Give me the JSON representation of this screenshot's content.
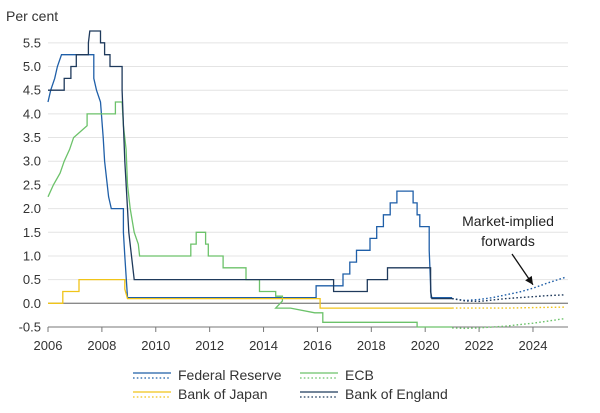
{
  "chart_data": {
    "type": "line",
    "title": "",
    "ylabel": "Per cent",
    "xlabel": "",
    "xlim": [
      2006,
      2025.3
    ],
    "ylim": [
      -0.5,
      5.75
    ],
    "x_ticks": [
      2006,
      2008,
      2010,
      2012,
      2014,
      2016,
      2018,
      2020,
      2022,
      2024
    ],
    "y_ticks": [
      -0.5,
      0.0,
      0.5,
      1.0,
      1.5,
      2.0,
      2.5,
      3.0,
      3.5,
      4.0,
      4.5,
      5.0,
      5.5
    ],
    "y_tick_labels": [
      "-0.5",
      "0.0",
      "0.5",
      "1.0",
      "1.5",
      "2.0",
      "2.5",
      "3.0",
      "3.5",
      "4.0",
      "4.5",
      "5.0",
      "5.5"
    ],
    "zero_line": true,
    "annotation": {
      "lines": [
        "Market-implied",
        "forwards"
      ],
      "points_to": [
        2024.0,
        0.35
      ]
    },
    "series": [
      {
        "name": "Federal Reserve",
        "color": "#1f5fa8",
        "actual": [
          [
            2006.0,
            4.25
          ],
          [
            2006.1,
            4.5
          ],
          [
            2006.25,
            4.75
          ],
          [
            2006.35,
            5.0
          ],
          [
            2006.5,
            5.25
          ],
          [
            2007.7,
            5.25
          ],
          [
            2007.7,
            4.75
          ],
          [
            2007.8,
            4.5
          ],
          [
            2007.95,
            4.25
          ],
          [
            2008.05,
            3.5
          ],
          [
            2008.1,
            3.0
          ],
          [
            2008.25,
            2.25
          ],
          [
            2008.35,
            2.0
          ],
          [
            2008.8,
            2.0
          ],
          [
            2008.8,
            1.5
          ],
          [
            2008.85,
            1.0
          ],
          [
            2008.95,
            0.12
          ],
          [
            2015.95,
            0.12
          ],
          [
            2015.95,
            0.37
          ],
          [
            2016.95,
            0.37
          ],
          [
            2016.95,
            0.62
          ],
          [
            2017.2,
            0.62
          ],
          [
            2017.2,
            0.87
          ],
          [
            2017.45,
            0.87
          ],
          [
            2017.45,
            1.12
          ],
          [
            2017.95,
            1.12
          ],
          [
            2017.95,
            1.37
          ],
          [
            2018.2,
            1.37
          ],
          [
            2018.2,
            1.62
          ],
          [
            2018.45,
            1.62
          ],
          [
            2018.45,
            1.87
          ],
          [
            2018.7,
            1.87
          ],
          [
            2018.7,
            2.12
          ],
          [
            2018.95,
            2.12
          ],
          [
            2018.95,
            2.37
          ],
          [
            2019.55,
            2.37
          ],
          [
            2019.55,
            2.12
          ],
          [
            2019.7,
            2.12
          ],
          [
            2019.7,
            1.87
          ],
          [
            2019.8,
            1.87
          ],
          [
            2019.8,
            1.62
          ],
          [
            2020.15,
            1.62
          ],
          [
            2020.15,
            1.12
          ],
          [
            2020.22,
            0.12
          ],
          [
            2021.0,
            0.12
          ]
        ],
        "forward": [
          [
            2021.0,
            0.1
          ],
          [
            2021.5,
            0.06
          ],
          [
            2022.0,
            0.08
          ],
          [
            2022.5,
            0.12
          ],
          [
            2023.0,
            0.18
          ],
          [
            2023.5,
            0.24
          ],
          [
            2024.0,
            0.32
          ],
          [
            2024.5,
            0.42
          ],
          [
            2025.2,
            0.55
          ]
        ]
      },
      {
        "name": "ECB",
        "color": "#6cc26a",
        "actual": [
          [
            2006.0,
            2.25
          ],
          [
            2006.2,
            2.5
          ],
          [
            2006.45,
            2.75
          ],
          [
            2006.6,
            3.0
          ],
          [
            2006.8,
            3.25
          ],
          [
            2006.95,
            3.5
          ],
          [
            2007.45,
            3.75
          ],
          [
            2007.45,
            4.0
          ],
          [
            2008.5,
            4.0
          ],
          [
            2008.5,
            4.25
          ],
          [
            2008.75,
            4.25
          ],
          [
            2008.8,
            3.75
          ],
          [
            2008.9,
            3.25
          ],
          [
            2008.95,
            2.5
          ],
          [
            2009.05,
            2.0
          ],
          [
            2009.2,
            1.5
          ],
          [
            2009.35,
            1.25
          ],
          [
            2009.4,
            1.0
          ],
          [
            2011.3,
            1.0
          ],
          [
            2011.3,
            1.25
          ],
          [
            2011.5,
            1.25
          ],
          [
            2011.5,
            1.5
          ],
          [
            2011.85,
            1.5
          ],
          [
            2011.85,
            1.25
          ],
          [
            2011.95,
            1.25
          ],
          [
            2011.95,
            1.0
          ],
          [
            2012.5,
            1.0
          ],
          [
            2012.5,
            0.75
          ],
          [
            2013.35,
            0.75
          ],
          [
            2013.35,
            0.5
          ],
          [
            2013.85,
            0.5
          ],
          [
            2013.85,
            0.25
          ],
          [
            2014.45,
            0.25
          ],
          [
            2014.45,
            0.15
          ],
          [
            2014.7,
            0.15
          ],
          [
            2014.7,
            0.05
          ],
          [
            2014.45,
            -0.1
          ],
          [
            2015.0,
            -0.1
          ],
          [
            2015.9,
            -0.2
          ],
          [
            2016.2,
            -0.2
          ],
          [
            2016.2,
            -0.3
          ],
          [
            2016.2,
            -0.4
          ],
          [
            2019.7,
            -0.4
          ],
          [
            2019.7,
            -0.5
          ],
          [
            2021.0,
            -0.5
          ]
        ],
        "forward": [
          [
            2021.0,
            -0.52
          ],
          [
            2021.5,
            -0.53
          ],
          [
            2022.0,
            -0.52
          ],
          [
            2022.5,
            -0.5
          ],
          [
            2023.0,
            -0.48
          ],
          [
            2023.5,
            -0.45
          ],
          [
            2024.0,
            -0.42
          ],
          [
            2024.5,
            -0.38
          ],
          [
            2025.2,
            -0.32
          ]
        ]
      },
      {
        "name": "Bank of Japan",
        "color": "#f0c419",
        "actual": [
          [
            2006.0,
            0.0
          ],
          [
            2006.55,
            0.0
          ],
          [
            2006.55,
            0.25
          ],
          [
            2007.15,
            0.25
          ],
          [
            2007.15,
            0.5
          ],
          [
            2008.85,
            0.5
          ],
          [
            2008.85,
            0.3
          ],
          [
            2008.95,
            0.1
          ],
          [
            2016.1,
            0.1
          ],
          [
            2016.1,
            -0.1
          ],
          [
            2021.0,
            -0.1
          ]
        ],
        "forward": [
          [
            2021.0,
            -0.1
          ],
          [
            2022.0,
            -0.1
          ],
          [
            2023.0,
            -0.1
          ],
          [
            2024.0,
            -0.09
          ],
          [
            2025.2,
            -0.08
          ]
        ]
      },
      {
        "name": "Bank of England",
        "color": "#1f3a5c",
        "actual": [
          [
            2006.0,
            4.5
          ],
          [
            2006.6,
            4.5
          ],
          [
            2006.6,
            4.75
          ],
          [
            2006.85,
            4.75
          ],
          [
            2006.85,
            5.0
          ],
          [
            2007.05,
            5.0
          ],
          [
            2007.05,
            5.25
          ],
          [
            2007.5,
            5.25
          ],
          [
            2007.5,
            5.5
          ],
          [
            2007.55,
            5.75
          ],
          [
            2007.95,
            5.75
          ],
          [
            2007.95,
            5.5
          ],
          [
            2008.1,
            5.5
          ],
          [
            2008.1,
            5.25
          ],
          [
            2008.3,
            5.25
          ],
          [
            2008.3,
            5.0
          ],
          [
            2008.75,
            5.0
          ],
          [
            2008.75,
            4.5
          ],
          [
            2008.85,
            3.0
          ],
          [
            2008.95,
            2.0
          ],
          [
            2009.0,
            1.5
          ],
          [
            2009.1,
            1.0
          ],
          [
            2009.2,
            0.5
          ],
          [
            2016.6,
            0.5
          ],
          [
            2016.6,
            0.25
          ],
          [
            2017.85,
            0.25
          ],
          [
            2017.85,
            0.5
          ],
          [
            2018.6,
            0.5
          ],
          [
            2018.6,
            0.75
          ],
          [
            2020.2,
            0.75
          ],
          [
            2020.2,
            0.25
          ],
          [
            2020.25,
            0.1
          ],
          [
            2021.0,
            0.1
          ]
        ],
        "forward": [
          [
            2021.0,
            0.1
          ],
          [
            2021.5,
            0.05
          ],
          [
            2022.0,
            0.04
          ],
          [
            2022.5,
            0.07
          ],
          [
            2023.0,
            0.1
          ],
          [
            2023.5,
            0.12
          ],
          [
            2024.0,
            0.14
          ],
          [
            2024.5,
            0.16
          ],
          [
            2025.2,
            0.18
          ]
        ]
      }
    ]
  }
}
